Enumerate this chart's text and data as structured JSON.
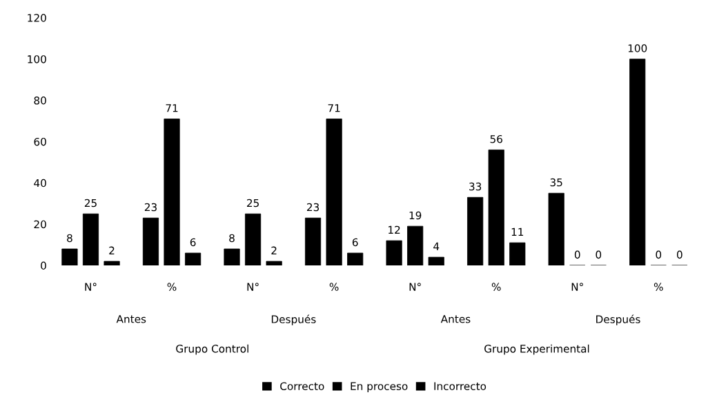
{
  "chart_data": {
    "type": "bar",
    "categories": [
      "N°",
      "%",
      "N°",
      "%",
      "N°",
      "%",
      "N°",
      "%"
    ],
    "series": [
      {
        "name": "Correcto",
        "color": "#000000",
        "values": [
          8,
          23,
          8,
          23,
          12,
          33,
          35,
          100
        ]
      },
      {
        "name": "En proceso",
        "color": "#000000",
        "values": [
          25,
          71,
          25,
          71,
          19,
          56,
          0,
          0
        ]
      },
      {
        "name": "Incorrecto",
        "color": "#000000",
        "values": [
          2,
          6,
          2,
          6,
          4,
          11,
          0,
          0
        ]
      }
    ],
    "annotations": [
      "Antes",
      "Después",
      "Antes",
      "Después",
      "Grupo Control",
      "Grupo Experimental"
    ],
    "ylim": [
      0,
      120
    ],
    "yticks": [
      0,
      20,
      40,
      60,
      80,
      100,
      120
    ],
    "data_labels": true,
    "legend": "bottom",
    "grid": false
  }
}
